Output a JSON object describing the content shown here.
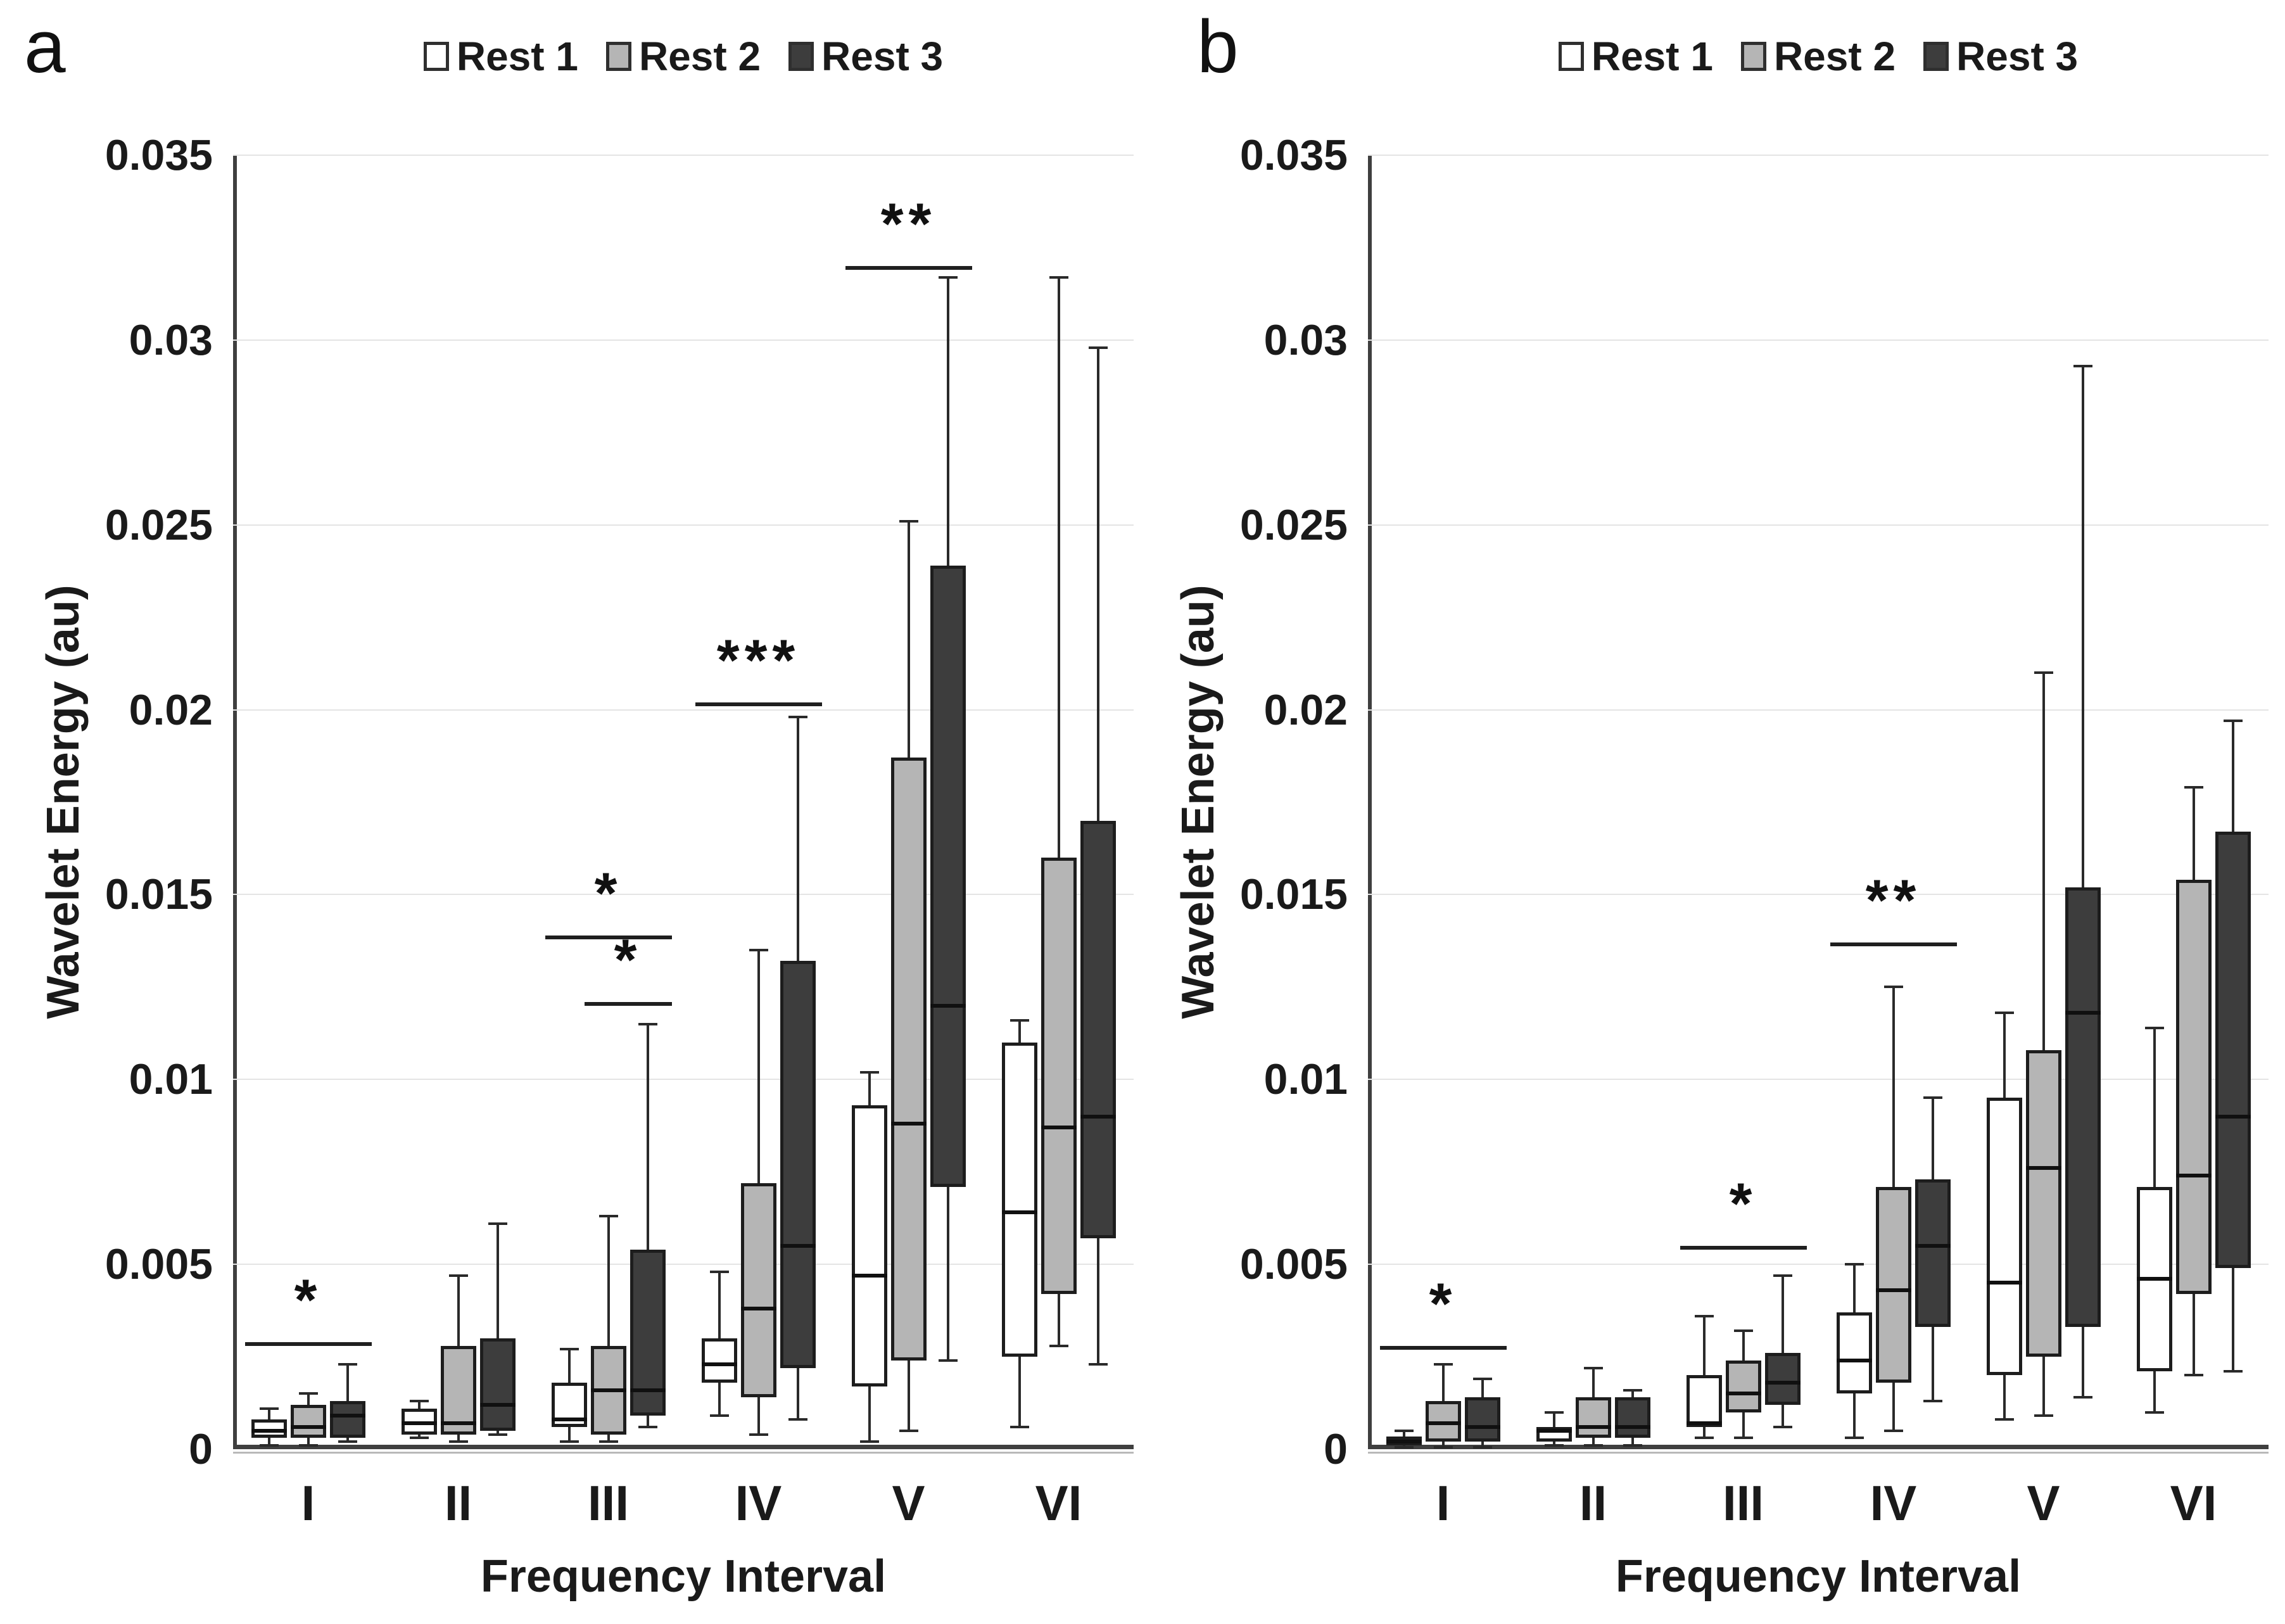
{
  "page": {
    "background": "#ffffff"
  },
  "chart_data": [
    {
      "type": "boxplot",
      "panel_label": "a",
      "ylabel": "Wavelet Energy (au)",
      "xlabel": "Frequency Interval",
      "ylim": [
        0,
        0.035
      ],
      "grid": "horizontal",
      "legend_position": "top-center",
      "yticks": [
        0.035,
        0.03,
        0.025,
        0.02,
        0.015,
        0.01,
        0.005,
        0
      ],
      "ytick_labels": [
        "0.035",
        "0.03",
        "0.025",
        "0.02",
        "0.015",
        "0.01",
        "0.005",
        "0"
      ],
      "categories": [
        "I",
        "II",
        "III",
        "IV",
        "V",
        "VI"
      ],
      "legend": [
        {
          "label": "Rest 1",
          "color": "#ffffff"
        },
        {
          "label": "Rest 2",
          "color": "#b5b5b5"
        },
        {
          "label": "Rest 3",
          "color": "#3d3d3d"
        }
      ],
      "series": [
        {
          "name": "Rest 1",
          "color": "#ffffff",
          "boxes": [
            {
              "lo": 0.0001,
              "q1": 0.0003,
              "med": 0.0005,
              "q3": 0.0008,
              "hi": 0.0011
            },
            {
              "lo": 0.0003,
              "q1": 0.0004,
              "med": 0.0007,
              "q3": 0.0011,
              "hi": 0.0013
            },
            {
              "lo": 0.0002,
              "q1": 0.0006,
              "med": 0.0008,
              "q3": 0.0018,
              "hi": 0.0027
            },
            {
              "lo": 0.0009,
              "q1": 0.0018,
              "med": 0.0023,
              "q3": 0.003,
              "hi": 0.0048
            },
            {
              "lo": 0.0002,
              "q1": 0.0017,
              "med": 0.0047,
              "q3": 0.0093,
              "hi": 0.0102
            },
            {
              "lo": 0.0006,
              "q1": 0.0025,
              "med": 0.0064,
              "q3": 0.011,
              "hi": 0.0116
            }
          ]
        },
        {
          "name": "Rest 2",
          "color": "#b5b5b5",
          "boxes": [
            {
              "lo": 0.0001,
              "q1": 0.0003,
              "med": 0.0006,
              "q3": 0.0012,
              "hi": 0.0015
            },
            {
              "lo": 0.0002,
              "q1": 0.0004,
              "med": 0.0007,
              "q3": 0.0028,
              "hi": 0.0047
            },
            {
              "lo": 0.0002,
              "q1": 0.0004,
              "med": 0.0016,
              "q3": 0.0028,
              "hi": 0.0063
            },
            {
              "lo": 0.0004,
              "q1": 0.0014,
              "med": 0.0038,
              "q3": 0.0072,
              "hi": 0.0135
            },
            {
              "lo": 0.0005,
              "q1": 0.0024,
              "med": 0.0088,
              "q3": 0.0187,
              "hi": 0.0251
            },
            {
              "lo": 0.0028,
              "q1": 0.0042,
              "med": 0.0087,
              "q3": 0.016,
              "hi": 0.0317
            }
          ]
        },
        {
          "name": "Rest 3",
          "color": "#3d3d3d",
          "boxes": [
            {
              "lo": 0.0002,
              "q1": 0.0003,
              "med": 0.0009,
              "q3": 0.0013,
              "hi": 0.0023
            },
            {
              "lo": 0.0004,
              "q1": 0.0005,
              "med": 0.0012,
              "q3": 0.003,
              "hi": 0.0061
            },
            {
              "lo": 0.0006,
              "q1": 0.0009,
              "med": 0.0016,
              "q3": 0.0054,
              "hi": 0.0115
            },
            {
              "lo": 0.0008,
              "q1": 0.0022,
              "med": 0.0055,
              "q3": 0.0132,
              "hi": 0.0198
            },
            {
              "lo": 0.0024,
              "q1": 0.0071,
              "med": 0.012,
              "q3": 0.0239,
              "hi": 0.0317
            },
            {
              "lo": 0.0023,
              "q1": 0.0057,
              "med": 0.009,
              "q3": 0.017,
              "hi": 0.0298
            }
          ]
        }
      ],
      "significance": [
        {
          "category": "I",
          "label": "*",
          "value": 0.0029,
          "from_series": 0,
          "to_series": 2
        },
        {
          "category": "III",
          "label": "*",
          "value": 0.0139,
          "from_series": 0,
          "to_series": 2
        },
        {
          "category": "III",
          "label": "*",
          "value": 0.0121,
          "from_series": 1,
          "to_series": 2
        },
        {
          "category": "IV",
          "label": "***",
          "value": 0.0202,
          "from_series": 0,
          "to_series": 2
        },
        {
          "category": "V",
          "label": "**",
          "value": 0.032,
          "from_series": 0,
          "to_series": 2
        }
      ]
    },
    {
      "type": "boxplot",
      "panel_label": "b",
      "ylabel": "Wavelet Energy (au)",
      "xlabel": "Frequency Interval",
      "ylim": [
        0,
        0.035
      ],
      "grid": "horizontal",
      "legend_position": "top-center",
      "yticks": [
        0.035,
        0.03,
        0.025,
        0.02,
        0.015,
        0.01,
        0.005,
        0
      ],
      "ytick_labels": [
        "0.035",
        "0.03",
        "0.025",
        "0.02",
        "0.015",
        "0.01",
        "0.005",
        "0"
      ],
      "categories": [
        "I",
        "II",
        "III",
        "IV",
        "V",
        "VI"
      ],
      "legend": [
        {
          "label": "Rest 1",
          "color": "#ffffff"
        },
        {
          "label": "Rest 2",
          "color": "#b5b5b5"
        },
        {
          "label": "Rest 3",
          "color": "#3d3d3d"
        }
      ],
      "series": [
        {
          "name": "Rest 1",
          "color": "#ffffff",
          "boxes": [
            {
              "lo": 5e-05,
              "q1": 0.0001,
              "med": 0.0002,
              "q3": 0.00035,
              "hi": 0.0005
            },
            {
              "lo": 0.0001,
              "q1": 0.0002,
              "med": 0.0005,
              "q3": 0.0006,
              "hi": 0.001
            },
            {
              "lo": 0.0003,
              "q1": 0.0006,
              "med": 0.0007,
              "q3": 0.002,
              "hi": 0.0036
            },
            {
              "lo": 0.0003,
              "q1": 0.0015,
              "med": 0.0024,
              "q3": 0.0037,
              "hi": 0.005
            },
            {
              "lo": 0.0008,
              "q1": 0.002,
              "med": 0.0045,
              "q3": 0.0095,
              "hi": 0.0118
            },
            {
              "lo": 0.001,
              "q1": 0.0021,
              "med": 0.0046,
              "q3": 0.0071,
              "hi": 0.0114
            }
          ]
        },
        {
          "name": "Rest 2",
          "color": "#b5b5b5",
          "boxes": [
            {
              "lo": 5e-05,
              "q1": 0.0002,
              "med": 0.0007,
              "q3": 0.0013,
              "hi": 0.0023
            },
            {
              "lo": 0.0001,
              "q1": 0.0003,
              "med": 0.0006,
              "q3": 0.0014,
              "hi": 0.0022
            },
            {
              "lo": 0.0003,
              "q1": 0.001,
              "med": 0.0015,
              "q3": 0.0024,
              "hi": 0.0032
            },
            {
              "lo": 0.0005,
              "q1": 0.0018,
              "med": 0.0043,
              "q3": 0.0071,
              "hi": 0.0125
            },
            {
              "lo": 0.0009,
              "q1": 0.0025,
              "med": 0.0076,
              "q3": 0.0108,
              "hi": 0.021
            },
            {
              "lo": 0.002,
              "q1": 0.0042,
              "med": 0.0074,
              "q3": 0.0154,
              "hi": 0.0179
            }
          ]
        },
        {
          "name": "Rest 3",
          "color": "#3d3d3d",
          "boxes": [
            {
              "lo": 5e-05,
              "q1": 0.0002,
              "med": 0.0006,
              "q3": 0.0014,
              "hi": 0.0019
            },
            {
              "lo": 0.0001,
              "q1": 0.0003,
              "med": 0.0006,
              "q3": 0.0014,
              "hi": 0.0016
            },
            {
              "lo": 0.0006,
              "q1": 0.0012,
              "med": 0.0018,
              "q3": 0.0026,
              "hi": 0.0047
            },
            {
              "lo": 0.0013,
              "q1": 0.0033,
              "med": 0.0055,
              "q3": 0.0073,
              "hi": 0.0095
            },
            {
              "lo": 0.0014,
              "q1": 0.0033,
              "med": 0.0118,
              "q3": 0.0152,
              "hi": 0.0293
            },
            {
              "lo": 0.0021,
              "q1": 0.0049,
              "med": 0.009,
              "q3": 0.0167,
              "hi": 0.0197
            }
          ]
        }
      ],
      "significance": [
        {
          "category": "I",
          "label": "*",
          "value": 0.0028,
          "from_series": 0,
          "to_series": 2
        },
        {
          "category": "III",
          "label": "*",
          "value": 0.0055,
          "from_series": 0,
          "to_series": 2
        },
        {
          "category": "IV",
          "label": "**",
          "value": 0.0137,
          "from_series": 0,
          "to_series": 2
        }
      ]
    }
  ]
}
